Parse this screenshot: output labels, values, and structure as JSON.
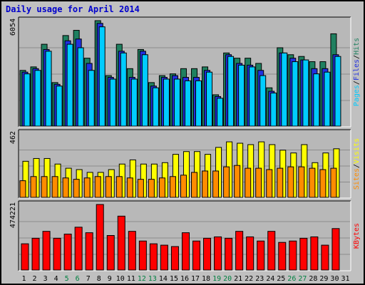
{
  "chart_data": {
    "type": "bar",
    "title": "Daily usage for April 2014",
    "colors": {
      "hits": "#1f8060",
      "files": "#2030e0",
      "pages": "#00ccff",
      "visits": "#ffff00",
      "sites": "#ff8c00",
      "kbytes": "#ff0000",
      "weekend_day": "#008040",
      "weekday": "#000000",
      "title": "#0000cc",
      "panel": "#b8b8b8"
    },
    "categories": [
      "1",
      "2",
      "3",
      "4",
      "5",
      "6",
      "7",
      "8",
      "9",
      "10",
      "11",
      "12",
      "13",
      "14",
      "15",
      "16",
      "17",
      "18",
      "19",
      "20",
      "21",
      "22",
      "23",
      "24",
      "25",
      "26",
      "27",
      "28",
      "29",
      "30",
      "31"
    ],
    "weekend_days": [
      "5",
      "6",
      "12",
      "13",
      "19",
      "20",
      "26",
      "27"
    ],
    "panels": [
      {
        "id": "usage",
        "ylim": [
          0,
          6054
        ],
        "tick_label": "6054",
        "series": [
          {
            "name": "Hits",
            "values": [
              3200,
              3400,
              4700,
              2500,
              5200,
              5500,
              3900,
              6054,
              2900,
              4700,
              3300,
              4400,
              2500,
              2900,
              3000,
              3300,
              3300,
              3400,
              1800,
              4200,
              3900,
              3900,
              3600,
              2200,
              4500,
              4100,
              4000,
              3700,
              3700,
              5300,
              0
            ]
          },
          {
            "name": "Files",
            "values": [
              3100,
              3300,
              4400,
              2400,
              4900,
              5000,
              3600,
              5900,
              2800,
              4300,
              2800,
              4300,
              2300,
              2800,
              2900,
              2800,
              2800,
              3200,
              1700,
              4100,
              3600,
              3500,
              3200,
              2000,
              4200,
              3900,
              3800,
              3300,
              3300,
              4100,
              0
            ]
          },
          {
            "name": "Pages",
            "values": [
              3000,
              3200,
              4300,
              2300,
              4700,
              4500,
              3200,
              5700,
              2700,
              4200,
              2700,
              4100,
              2200,
              2700,
              2700,
              2600,
              2600,
              3100,
              1600,
              4000,
              3500,
              3400,
              2900,
              1900,
              4200,
              3700,
              3800,
              3000,
              3100,
              4000,
              0
            ]
          }
        ]
      },
      {
        "id": "visits",
        "ylim": [
          0,
          462
        ],
        "tick_label": "462",
        "series": [
          {
            "name": "Visits",
            "values": [
              260,
              280,
              280,
              240,
              210,
              200,
              180,
              180,
              200,
              240,
              270,
              240,
              240,
              250,
              310,
              330,
              330,
              310,
              360,
              400,
              390,
              380,
              400,
              380,
              340,
              320,
              380,
              250,
              320,
              350,
              0
            ]
          },
          {
            "name": "Sites",
            "values": [
              120,
              150,
              150,
              150,
              140,
              130,
              140,
              150,
              150,
              150,
              140,
              130,
              130,
              140,
              150,
              160,
              180,
              190,
              190,
              220,
              230,
              210,
              210,
              200,
              210,
              220,
              220,
              210,
              200,
              210,
              0
            ]
          }
        ]
      },
      {
        "id": "kbytes",
        "ylim": [
          0,
          474221
        ],
        "tick_label": "474221",
        "series": [
          {
            "name": "KBytes",
            "values": [
              190000,
              230000,
              280000,
              230000,
              260000,
              310000,
              270000,
              474221,
              250000,
              390000,
              280000,
              210000,
              190000,
              180000,
              170000,
              270000,
              210000,
              230000,
              240000,
              230000,
              280000,
              240000,
              210000,
              280000,
              200000,
              210000,
              230000,
              240000,
              180000,
              300000,
              0
            ]
          }
        ]
      }
    ],
    "legends": {
      "usage": [
        "Pages",
        "Files",
        "Hits"
      ],
      "visits": [
        "Sites",
        "Visits"
      ],
      "kbytes": [
        "KBytes"
      ]
    }
  }
}
